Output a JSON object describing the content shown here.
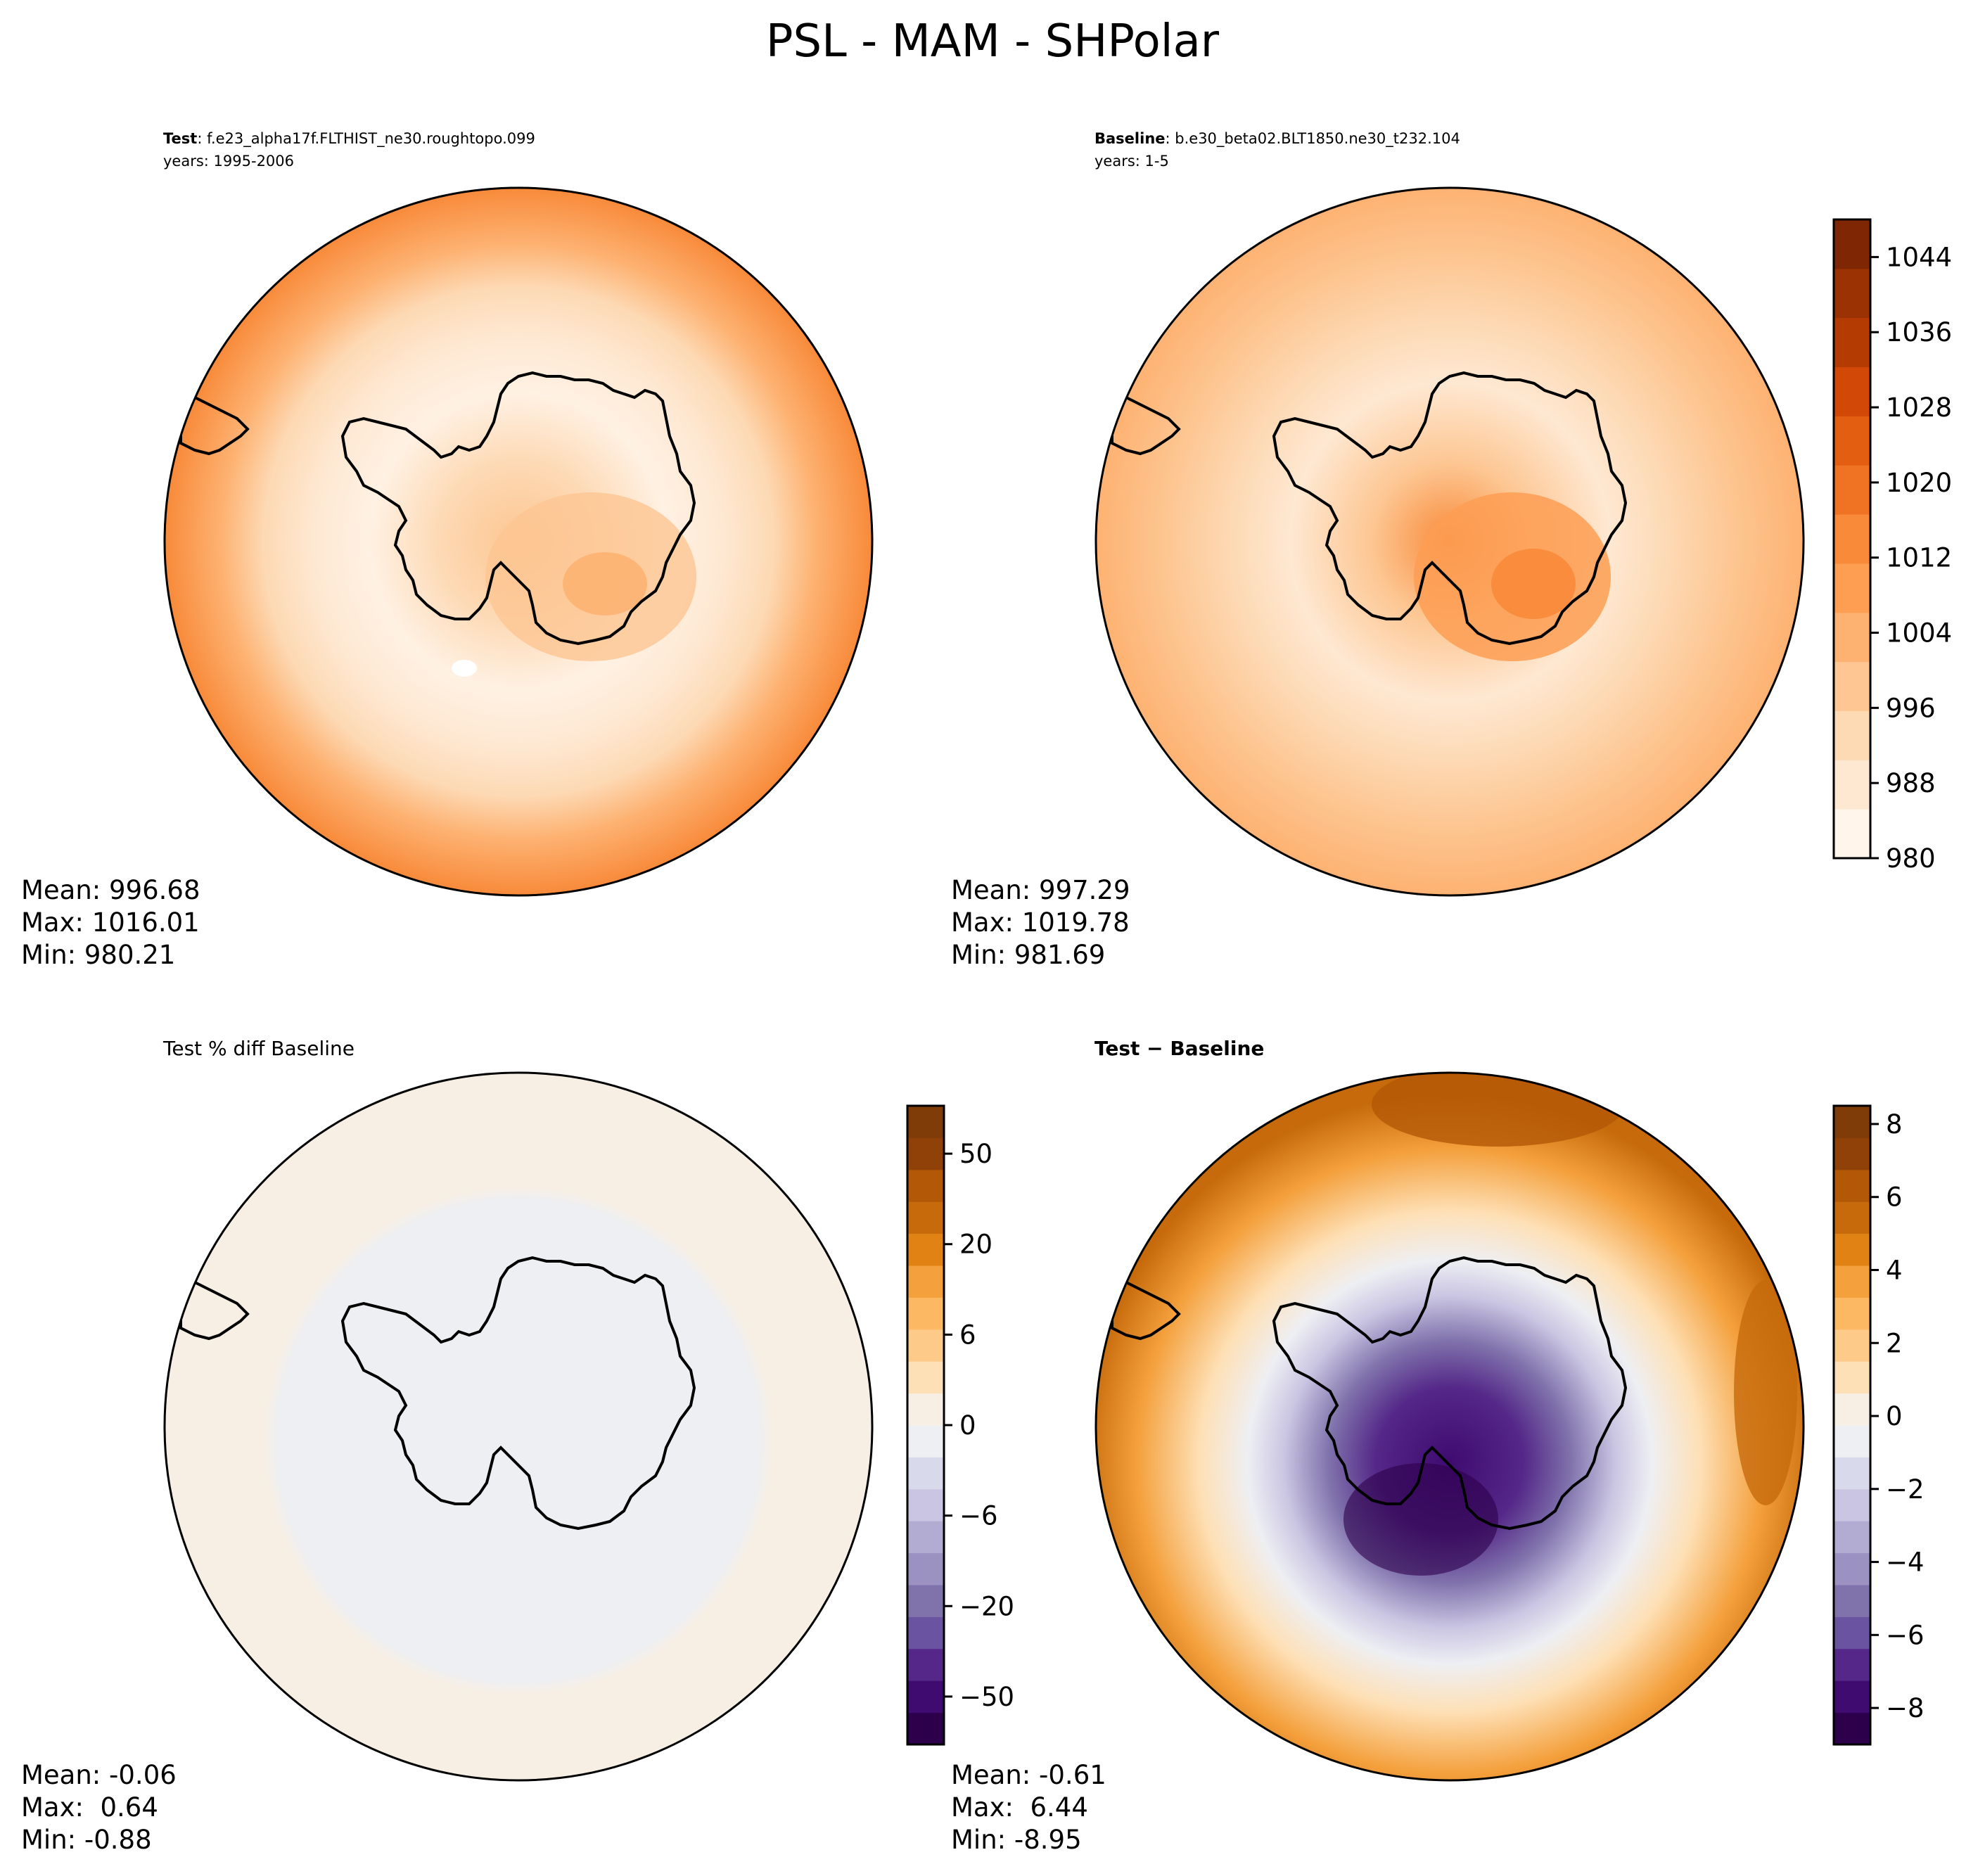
{
  "figure": {
    "title": "PSL - MAM - SHPolar"
  },
  "chart_data": [
    {
      "type": "heatmap",
      "panel": "test",
      "title_bold": "Test",
      "title_rest": ": f.e23_alpha17f.FLTHIST_ne30.roughtopo.099",
      "subtitle": "years: 1995-2006",
      "projection": "south polar stereographic",
      "stats": [
        "Mean: 996.68",
        "Max: 1016.01",
        "Min: 980.21"
      ]
    },
    {
      "type": "heatmap",
      "panel": "baseline",
      "title_bold": "Baseline",
      "title_rest": ": b.e30_beta02.BLT1850.ne30_t232.104",
      "subtitle": "years: 1-5",
      "projection": "south polar stereographic",
      "stats": [
        "Mean: 997.29",
        "Max: 1019.78",
        "Min: 981.69"
      ],
      "colorbar": {
        "range": [
          980,
          1048
        ],
        "ticks": [
          980,
          988,
          996,
          1004,
          1012,
          1020,
          1028,
          1036,
          1044
        ],
        "tick_labels": [
          "980",
          "988",
          "996",
          "1004",
          "1012",
          "1020",
          "1028",
          "1036",
          "1044"
        ],
        "colors": [
          "#fff5eb",
          "#fee8d2",
          "#fdd9b4",
          "#fdc692",
          "#fdb272",
          "#fd9e53",
          "#f88a3a",
          "#ef7323",
          "#e45e11",
          "#d24807",
          "#b43c02",
          "#9a3203",
          "#7f2704"
        ]
      }
    },
    {
      "type": "heatmap",
      "panel": "pct_diff",
      "title": "Test % diff Baseline",
      "projection": "south polar stereographic",
      "stats": [
        "Mean: -0.06",
        "Max:  0.64",
        "Min: -0.88"
      ],
      "colorbar": {
        "range": [
          -100,
          100
        ],
        "ticks": [
          -50,
          -20,
          -6,
          0,
          6,
          20,
          50
        ],
        "tick_labels": [
          "−50",
          "−20",
          "−6",
          "0",
          "6",
          "20",
          "50"
        ],
        "colors": [
          "#2d004b",
          "#3f0b70",
          "#542788",
          "#6a53a0",
          "#8073ac",
          "#9b92c2",
          "#b2abd2",
          "#cac5e2",
          "#d8daeb",
          "#eeeff3",
          "#f7efe4",
          "#fee0b6",
          "#fdca8a",
          "#fdb863",
          "#f4a03c",
          "#e08214",
          "#c66a0b",
          "#b35806",
          "#8f4107",
          "#7f3b08"
        ]
      }
    },
    {
      "type": "heatmap",
      "panel": "abs_diff",
      "title_bold": "Test − Baseline",
      "projection": "south polar stereographic",
      "stats": [
        "Mean: -0.61",
        "Max:  6.44",
        "Min: -8.95"
      ],
      "colorbar": {
        "range": [
          -9,
          8.5
        ],
        "ticks": [
          -8,
          -6,
          -4,
          -2,
          0,
          2,
          4,
          6,
          8
        ],
        "tick_labels": [
          "−8",
          "−6",
          "−4",
          "−2",
          "0",
          "2",
          "4",
          "6",
          "8"
        ],
        "colors": [
          "#2d004b",
          "#3f0b70",
          "#542788",
          "#6a53a0",
          "#8073ac",
          "#9b92c2",
          "#b2abd2",
          "#cac5e2",
          "#d8daeb",
          "#eeeff3",
          "#f7efe4",
          "#fee0b6",
          "#fdca8a",
          "#fdb863",
          "#f4a03c",
          "#e08214",
          "#c66a0b",
          "#b35806",
          "#8f4107",
          "#7f3b08"
        ]
      }
    }
  ]
}
